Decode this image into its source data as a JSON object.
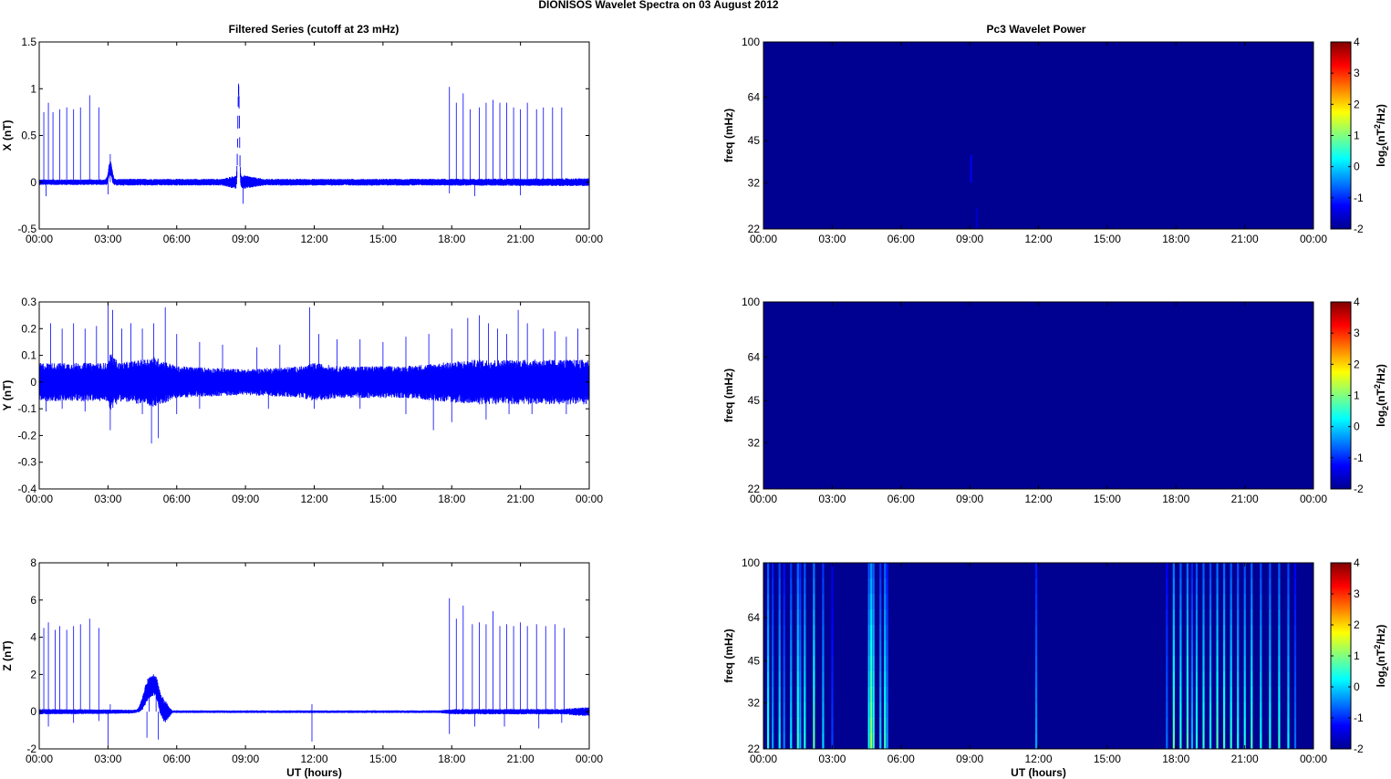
{
  "figure": {
    "title": "DIONISOS Wavelet Spectra on 03 August    2012",
    "left_title": "Filtered Series (cutoff at 23 mHz)",
    "right_title": "Pc3 Wavelet Power"
  },
  "chart_data": [
    {
      "type": "line",
      "panel": "X",
      "ylabel": "X (nT)",
      "xlabel": "",
      "x_ticks": [
        "00:00",
        "03:00",
        "06:00",
        "09:00",
        "12:00",
        "15:00",
        "18:00",
        "21:00",
        "00:00"
      ],
      "y_ticks": [
        "-0.5",
        "0",
        "0.5",
        "1",
        "1.5"
      ],
      "ylim": [
        -0.5,
        1.5
      ],
      "series": [
        {
          "color": "#0000ff",
          "noise_profile": [
            [
              0,
              0.025
            ],
            [
              2.9,
              0.025
            ],
            [
              3.1,
              0.07
            ],
            [
              3.3,
              0.03
            ],
            [
              8.0,
              0.03
            ],
            [
              8.5,
              0.06
            ],
            [
              9.0,
              0.06
            ],
            [
              9.8,
              0.03
            ],
            [
              17.5,
              0.03
            ],
            [
              24,
              0.035
            ]
          ],
          "bumps": [
            [
              3.1,
              0.1,
              0.15
            ],
            [
              8.7,
              0.05,
              1.0
            ]
          ],
          "spikes_up": [
            [
              0.2,
              0.75
            ],
            [
              0.4,
              0.85
            ],
            [
              0.6,
              0.75
            ],
            [
              0.9,
              0.78
            ],
            [
              1.2,
              0.8
            ],
            [
              1.5,
              0.78
            ],
            [
              1.8,
              0.8
            ],
            [
              2.2,
              0.93
            ],
            [
              2.6,
              0.8
            ],
            [
              3.1,
              0.3
            ],
            [
              17.9,
              1.02
            ],
            [
              18.2,
              0.85
            ],
            [
              18.5,
              0.95
            ],
            [
              18.8,
              0.78
            ],
            [
              19.2,
              0.8
            ],
            [
              19.5,
              0.85
            ],
            [
              19.8,
              0.88
            ],
            [
              20.1,
              0.85
            ],
            [
              20.4,
              0.85
            ],
            [
              20.7,
              0.8
            ],
            [
              21.0,
              0.78
            ],
            [
              21.3,
              0.85
            ],
            [
              21.7,
              0.78
            ],
            [
              22.0,
              0.8
            ],
            [
              22.4,
              0.8
            ],
            [
              22.8,
              0.8
            ]
          ],
          "spikes_down": [
            [
              0.3,
              -0.15
            ],
            [
              3.0,
              -0.13
            ],
            [
              8.9,
              -0.23
            ],
            [
              17.9,
              -0.12
            ],
            [
              19.0,
              -0.15
            ],
            [
              21.0,
              -0.14
            ]
          ]
        }
      ]
    },
    {
      "type": "line",
      "panel": "Y",
      "ylabel": "Y (nT)",
      "xlabel": "",
      "x_ticks": [
        "00:00",
        "03:00",
        "06:00",
        "09:00",
        "12:00",
        "15:00",
        "18:00",
        "21:00",
        "00:00"
      ],
      "y_ticks": [
        "-0.4",
        "-0.3",
        "-0.2",
        "-0.1",
        "0",
        "0.1",
        "0.2",
        "0.3"
      ],
      "ylim": [
        -0.4,
        0.3
      ],
      "series": [
        {
          "color": "#0000ff",
          "noise_profile": [
            [
              0,
              0.06
            ],
            [
              3.0,
              0.06
            ],
            [
              3.1,
              0.09
            ],
            [
              3.5,
              0.06
            ],
            [
              4.5,
              0.07
            ],
            [
              5.0,
              0.08
            ],
            [
              6.0,
              0.05
            ],
            [
              9.0,
              0.04
            ],
            [
              11.5,
              0.05
            ],
            [
              12.0,
              0.06
            ],
            [
              13.0,
              0.05
            ],
            [
              16.0,
              0.05
            ],
            [
              17.5,
              0.06
            ],
            [
              19.0,
              0.07
            ],
            [
              21.0,
              0.07
            ],
            [
              24,
              0.07
            ]
          ],
          "bumps": [],
          "spikes_up": [
            [
              0.5,
              0.22
            ],
            [
              1.0,
              0.2
            ],
            [
              1.5,
              0.22
            ],
            [
              2.0,
              0.2
            ],
            [
              2.5,
              0.21
            ],
            [
              3.0,
              0.3
            ],
            [
              3.2,
              0.27
            ],
            [
              3.6,
              0.2
            ],
            [
              4.0,
              0.22
            ],
            [
              4.5,
              0.2
            ],
            [
              5.0,
              0.22
            ],
            [
              5.5,
              0.28
            ],
            [
              6.0,
              0.18
            ],
            [
              7.0,
              0.15
            ],
            [
              8.0,
              0.14
            ],
            [
              9.5,
              0.13
            ],
            [
              10.5,
              0.14
            ],
            [
              11.8,
              0.28
            ],
            [
              12.2,
              0.18
            ],
            [
              13.0,
              0.16
            ],
            [
              14.0,
              0.16
            ],
            [
              15.0,
              0.15
            ],
            [
              16.0,
              0.17
            ],
            [
              17.0,
              0.18
            ],
            [
              18.0,
              0.2
            ],
            [
              18.7,
              0.24
            ],
            [
              19.2,
              0.25
            ],
            [
              19.6,
              0.22
            ],
            [
              20.0,
              0.2
            ],
            [
              20.4,
              0.18
            ],
            [
              20.9,
              0.27
            ],
            [
              21.3,
              0.22
            ],
            [
              22.0,
              0.2
            ],
            [
              22.5,
              0.19
            ],
            [
              23.0,
              0.17
            ],
            [
              23.5,
              0.2
            ]
          ],
          "spikes_down": [
            [
              0.3,
              -0.11
            ],
            [
              1.0,
              -0.1
            ],
            [
              2.0,
              -0.11
            ],
            [
              3.1,
              -0.18
            ],
            [
              4.5,
              -0.12
            ],
            [
              4.9,
              -0.23
            ],
            [
              5.2,
              -0.21
            ],
            [
              6.0,
              -0.12
            ],
            [
              7.0,
              -0.1
            ],
            [
              10.0,
              -0.1
            ],
            [
              12.0,
              -0.1
            ],
            [
              14.0,
              -0.1
            ],
            [
              16.0,
              -0.12
            ],
            [
              17.2,
              -0.18
            ],
            [
              18.0,
              -0.15
            ],
            [
              19.5,
              -0.14
            ],
            [
              20.5,
              -0.12
            ],
            [
              21.5,
              -0.12
            ],
            [
              23.0,
              -0.12
            ]
          ]
        }
      ]
    },
    {
      "type": "line",
      "panel": "Z",
      "ylabel": "Z (nT)",
      "xlabel": "UT (hours)",
      "x_ticks": [
        "00:00",
        "03:00",
        "06:00",
        "09:00",
        "12:00",
        "15:00",
        "18:00",
        "21:00",
        "00:00"
      ],
      "y_ticks": [
        "-2",
        "0",
        "2",
        "4",
        "6",
        "8"
      ],
      "ylim": [
        -2,
        8
      ],
      "series": [
        {
          "color": "#0000ff",
          "noise_profile": [
            [
              0,
              0.12
            ],
            [
              3.0,
              0.1
            ],
            [
              4.3,
              0.08
            ],
            [
              4.7,
              0.5
            ],
            [
              5.5,
              0.5
            ],
            [
              5.8,
              0.06
            ],
            [
              17.5,
              0.06
            ],
            [
              18.0,
              0.12
            ],
            [
              22.8,
              0.12
            ],
            [
              23.5,
              0.18
            ],
            [
              24,
              0.2
            ]
          ],
          "bumps": [
            [
              4.8,
              0.3,
              1.2
            ],
            [
              5.1,
              0.2,
              0.9
            ]
          ],
          "spikes_up": [
            [
              0.2,
              4.5
            ],
            [
              0.4,
              4.8
            ],
            [
              0.7,
              4.4
            ],
            [
              0.9,
              4.6
            ],
            [
              1.2,
              4.4
            ],
            [
              1.5,
              4.6
            ],
            [
              1.8,
              4.7
            ],
            [
              2.2,
              5.0
            ],
            [
              2.6,
              4.5
            ],
            [
              3.1,
              0.4
            ],
            [
              4.8,
              1.6
            ],
            [
              5.1,
              1.3
            ],
            [
              5.4,
              0.8
            ],
            [
              11.9,
              0.4
            ],
            [
              17.9,
              6.1
            ],
            [
              18.2,
              5.0
            ],
            [
              18.5,
              5.7
            ],
            [
              18.9,
              4.7
            ],
            [
              19.2,
              4.8
            ],
            [
              19.5,
              4.7
            ],
            [
              19.8,
              5.4
            ],
            [
              20.1,
              4.6
            ],
            [
              20.4,
              4.7
            ],
            [
              20.7,
              4.6
            ],
            [
              21.0,
              4.8
            ],
            [
              21.3,
              4.6
            ],
            [
              21.7,
              4.7
            ],
            [
              22.1,
              4.6
            ],
            [
              22.5,
              4.7
            ],
            [
              22.9,
              4.5
            ]
          ],
          "spikes_down": [
            [
              0.4,
              -0.8
            ],
            [
              1.5,
              -0.6
            ],
            [
              2.6,
              -0.5
            ],
            [
              3.0,
              -1.8
            ],
            [
              4.7,
              -1.4
            ],
            [
              5.2,
              -1.5
            ],
            [
              11.9,
              -1.6
            ],
            [
              17.9,
              -1.2
            ],
            [
              19.0,
              -0.8
            ],
            [
              20.3,
              -0.8
            ],
            [
              21.8,
              -0.9
            ],
            [
              22.8,
              -0.6
            ]
          ]
        }
      ]
    },
    {
      "type": "heatmap",
      "panel": "X",
      "ylabel": "freq (mHz)",
      "xlabel": "",
      "colorbar_label": "log2(nT^2/Hz)",
      "x_ticks": [
        "00:00",
        "03:00",
        "06:00",
        "09:00",
        "12:00",
        "15:00",
        "18:00",
        "21:00",
        "00:00"
      ],
      "y_ticks": [
        "100",
        "64",
        "45",
        "32",
        "22"
      ],
      "clim": [
        -2,
        4
      ],
      "colorbar_ticks": [
        "4",
        "3",
        "2",
        "1",
        "0",
        "-1",
        "-2"
      ],
      "background_level": -1.9,
      "hotspots": [
        [
          9.05,
          32,
          40,
          -1.4
        ],
        [
          9.3,
          22,
          26,
          -1.6
        ]
      ]
    },
    {
      "type": "heatmap",
      "panel": "Y",
      "ylabel": "freq (mHz)",
      "xlabel": "",
      "colorbar_label": "log2(nT^2/Hz)",
      "x_ticks": [
        "00:00",
        "03:00",
        "06:00",
        "09:00",
        "12:00",
        "15:00",
        "18:00",
        "21:00",
        "00:00"
      ],
      "y_ticks": [
        "100",
        "64",
        "45",
        "32",
        "22"
      ],
      "clim": [
        -2,
        4
      ],
      "colorbar_ticks": [
        "4",
        "3",
        "2",
        "1",
        "0",
        "-1",
        "-2"
      ],
      "background_level": -1.9,
      "hotspots": []
    },
    {
      "type": "heatmap",
      "panel": "Z",
      "ylabel": "freq (mHz)",
      "xlabel": "UT (hours)",
      "colorbar_label": "log2(nT^2/Hz)",
      "x_ticks": [
        "00:00",
        "03:00",
        "06:00",
        "09:00",
        "12:00",
        "15:00",
        "18:00",
        "21:00",
        "00:00"
      ],
      "y_ticks": [
        "100",
        "64",
        "45",
        "32",
        "22"
      ],
      "clim": [
        -2,
        4
      ],
      "colorbar_ticks": [
        "4",
        "3",
        "2",
        "1",
        "0",
        "-1",
        "-2"
      ],
      "background_level": -1.9,
      "streaks": [
        [
          0.2,
          0.5
        ],
        [
          0.4,
          -0.3
        ],
        [
          0.7,
          0.2
        ],
        [
          0.9,
          -0.5
        ],
        [
          1.2,
          0.1
        ],
        [
          1.5,
          0.6
        ],
        [
          1.6,
          -0.2
        ],
        [
          1.8,
          0.4
        ],
        [
          2.2,
          0.8
        ],
        [
          2.6,
          0.0
        ],
        [
          3.0,
          -0.9
        ],
        [
          4.6,
          0.4
        ],
        [
          4.7,
          1.2
        ],
        [
          4.8,
          0.5
        ],
        [
          5.1,
          0.0
        ],
        [
          5.3,
          0.6
        ],
        [
          5.4,
          -0.4
        ],
        [
          11.9,
          -0.3
        ],
        [
          17.6,
          -0.6
        ],
        [
          17.9,
          0.8
        ],
        [
          18.2,
          0.5
        ],
        [
          18.5,
          0.7
        ],
        [
          18.7,
          -0.2
        ],
        [
          18.9,
          0.4
        ],
        [
          19.2,
          0.5
        ],
        [
          19.5,
          0.3
        ],
        [
          19.8,
          0.7
        ],
        [
          20.1,
          0.6
        ],
        [
          20.4,
          0.5
        ],
        [
          20.7,
          0.3
        ],
        [
          21.0,
          0.4
        ],
        [
          21.3,
          0.6
        ],
        [
          21.7,
          0.3
        ],
        [
          22.1,
          0.4
        ],
        [
          22.5,
          0.5
        ],
        [
          22.9,
          0.2
        ],
        [
          23.2,
          -0.6
        ]
      ]
    }
  ]
}
